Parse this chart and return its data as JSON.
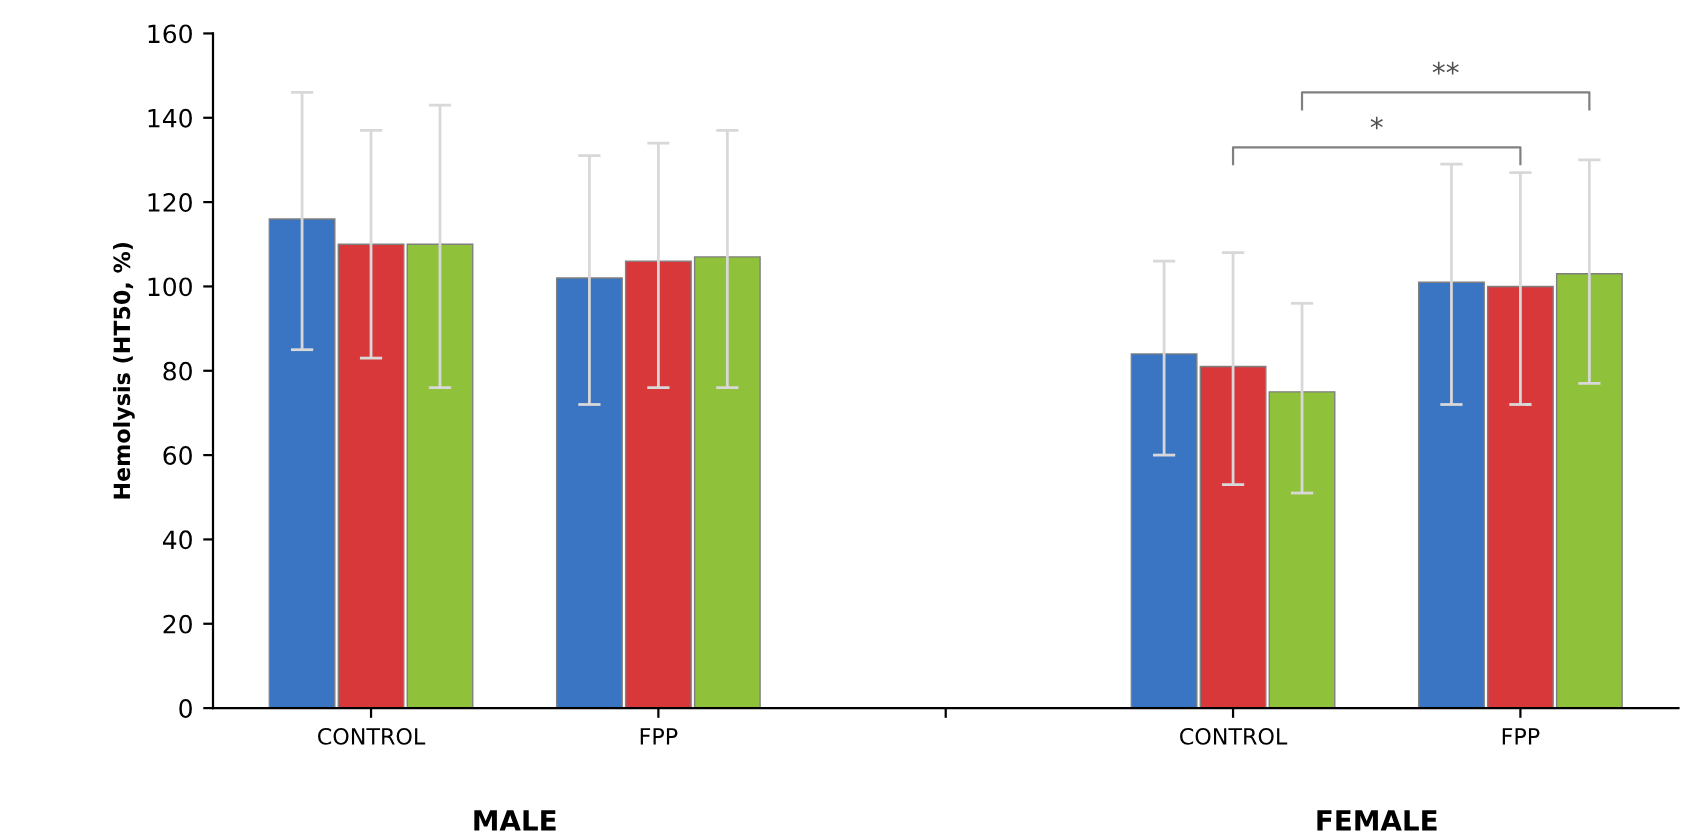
{
  "chart_data": {
    "type": "bar",
    "ylabel": "Hemolysis (HT50, %)",
    "categories": [
      "CONTROL",
      "FPP",
      null,
      "CONTROL",
      "FPP"
    ],
    "series": [
      {
        "color": "#3a75c4",
        "values": [
          116,
          102,
          null,
          84,
          101
        ],
        "errors": [
          [
            85,
            146
          ],
          [
            72,
            131
          ],
          null,
          [
            60,
            106
          ],
          [
            72,
            129
          ]
        ]
      },
      {
        "color": "#d9383a",
        "values": [
          110,
          106,
          null,
          81,
          100
        ],
        "errors": [
          [
            83,
            137
          ],
          [
            76,
            134
          ],
          null,
          [
            53,
            108
          ],
          [
            72,
            127
          ]
        ]
      },
      {
        "color": "#8fc13a",
        "values": [
          110,
          107,
          null,
          75,
          103
        ],
        "errors": [
          [
            76,
            143
          ],
          [
            76,
            137
          ],
          null,
          [
            51,
            96
          ],
          [
            77,
            130
          ]
        ]
      }
    ],
    "ylim": [
      0,
      160
    ],
    "yticks": [
      0,
      20,
      40,
      60,
      80,
      100,
      120,
      140,
      160
    ],
    "grid": false,
    "legend": false,
    "annotations": [
      "MALE",
      "FEMALE",
      "*",
      "**"
    ]
  }
}
